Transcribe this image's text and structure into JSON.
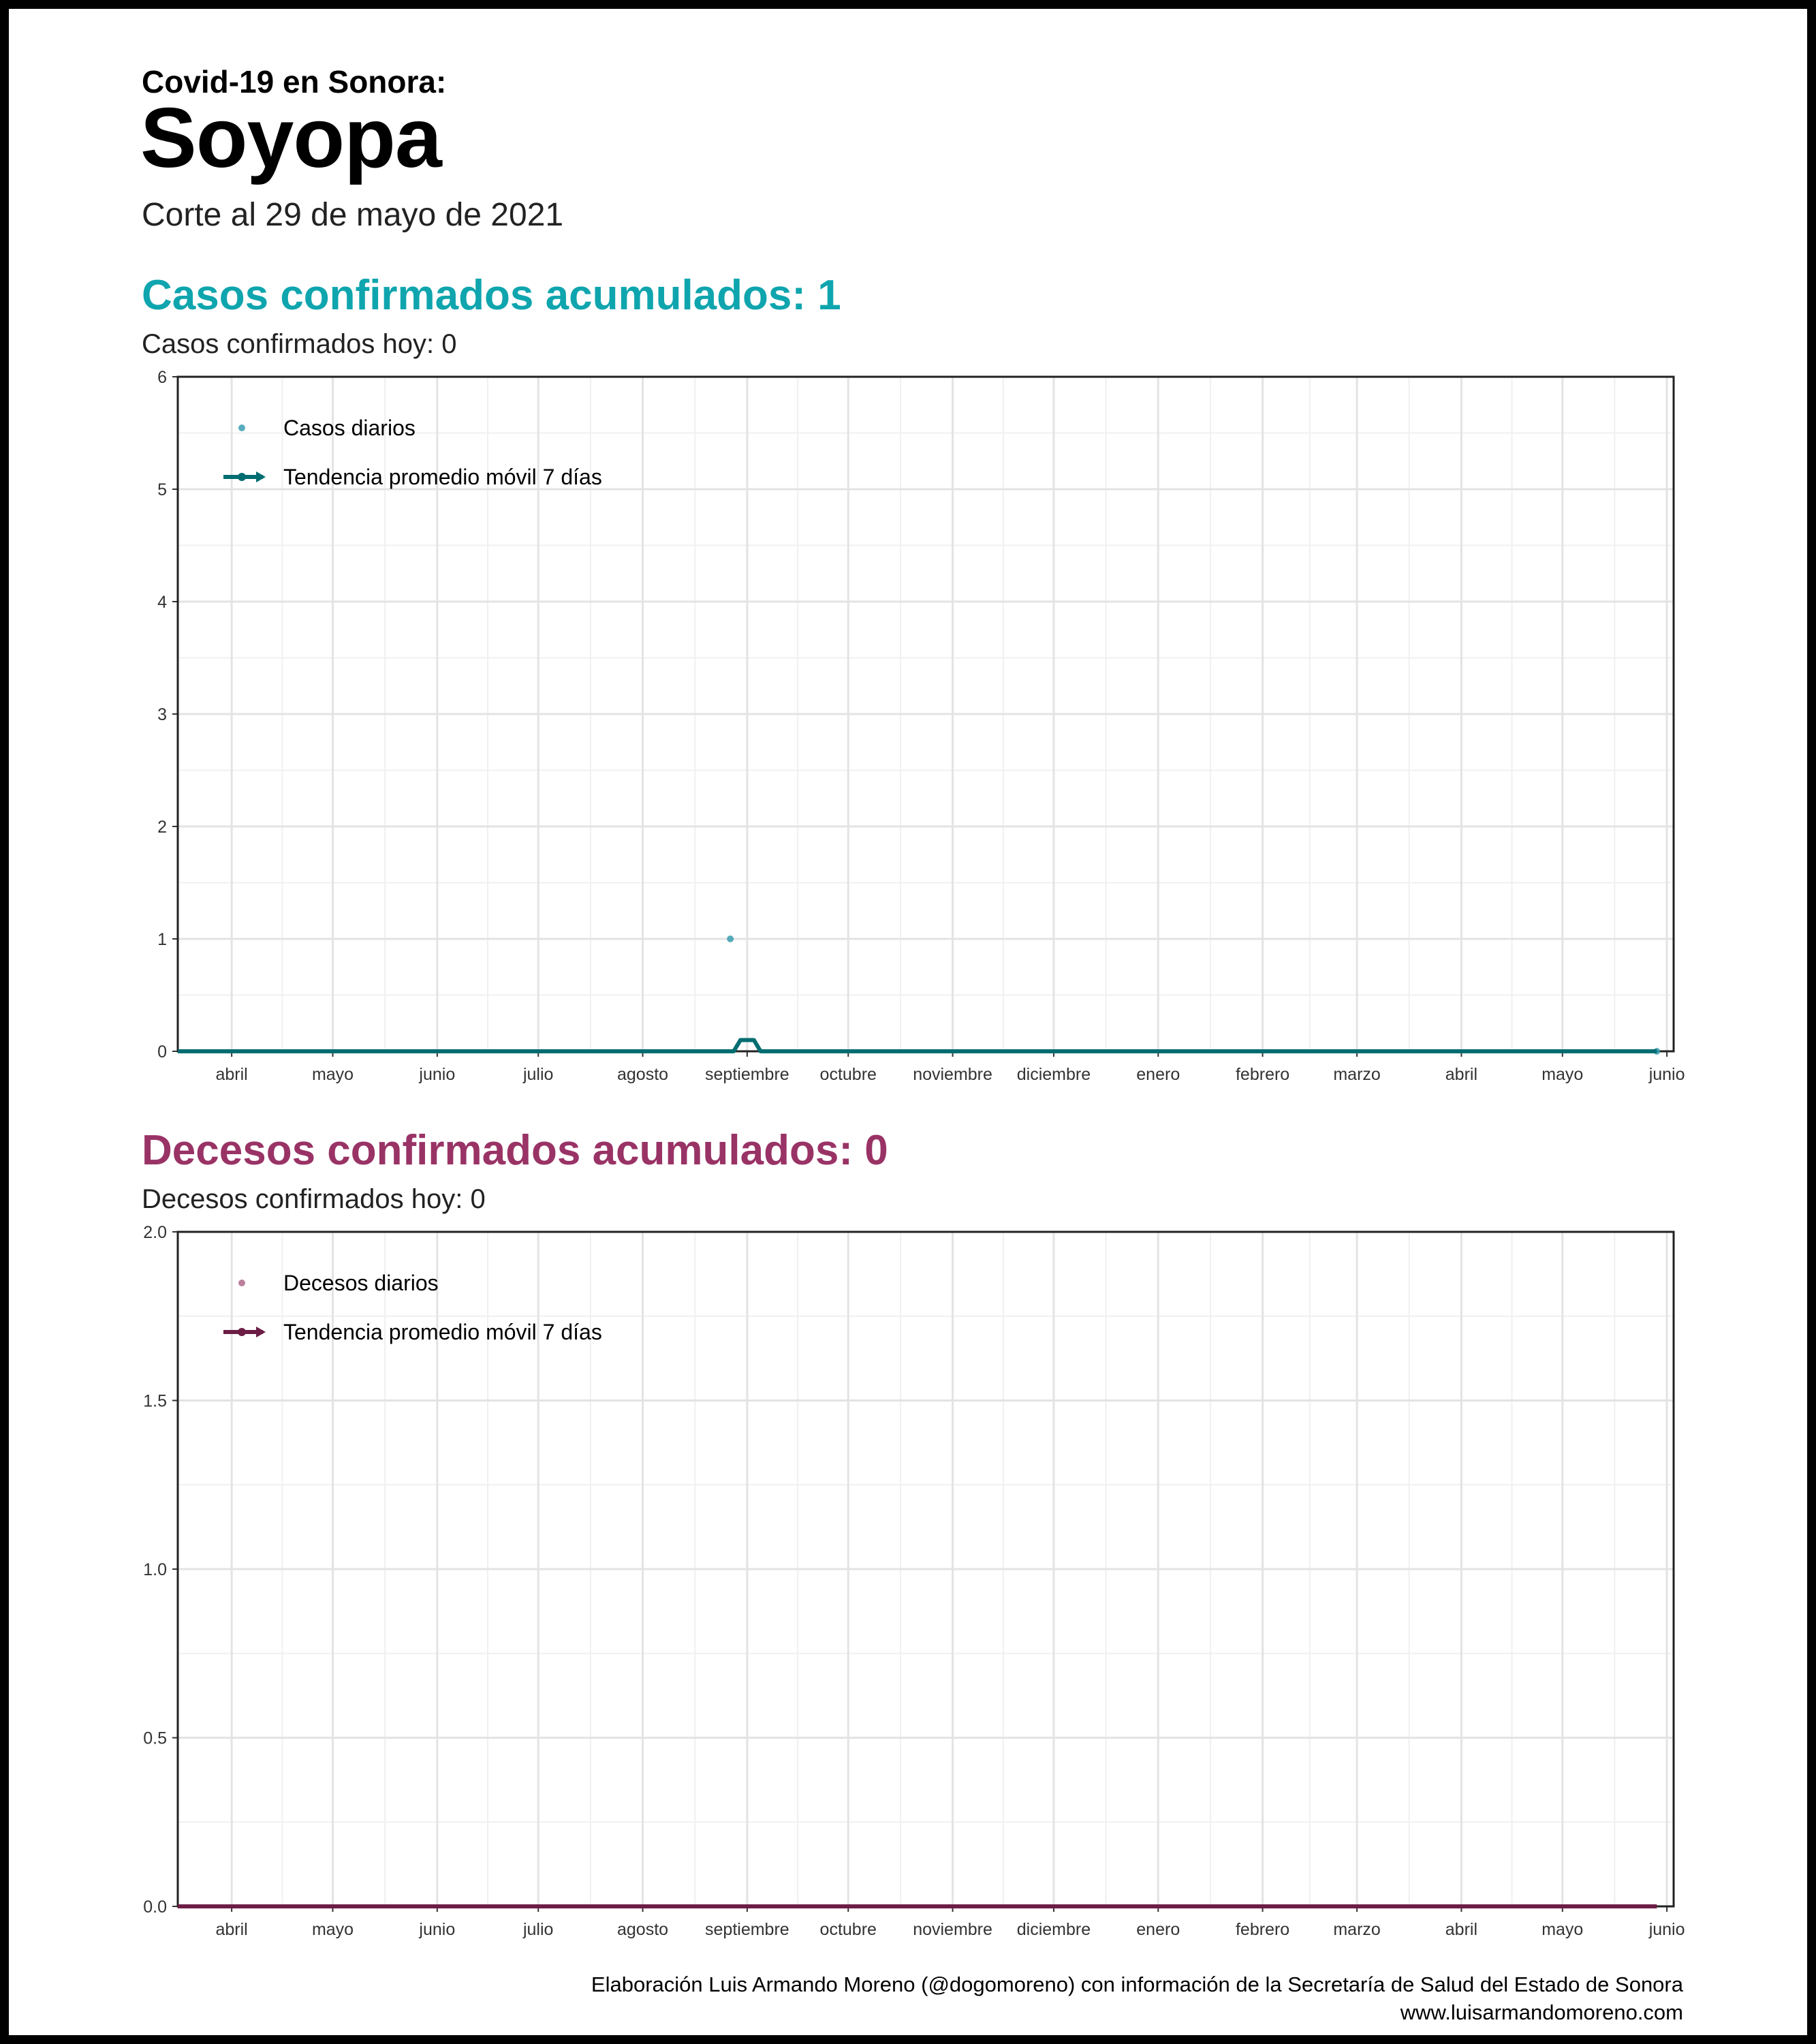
{
  "header": {
    "kicker": "Covid-19 en Sonora:",
    "municipality": "Soyopa",
    "cutoff": "Corte al 29 de mayo de 2021"
  },
  "cases": {
    "title": "Casos confirmados acumulados: 1",
    "today": "Casos confirmados hoy: 0",
    "color": "#0fa5ae",
    "line_color": "#006d71"
  },
  "deaths": {
    "title": "Decesos confirmados acumulados: 0",
    "today": "Decesos confirmados hoy: 0",
    "color": "#993366",
    "line_color": "#6d1e46"
  },
  "footer": {
    "credit": "Elaboración Luis Armando Moreno (@dogomoreno) con información de la Secretaría de Salud del Estado de Sonora",
    "website": "www.luisarmandomoreno.com"
  },
  "chart_data": [
    {
      "type": "line",
      "x_ticks": [
        "abril",
        "mayo",
        "junio",
        "julio",
        "agosto",
        "septiembre",
        "octubre",
        "noviembre",
        "diciembre",
        "enero",
        "febrero",
        "marzo",
        "abril",
        "mayo",
        "junio"
      ],
      "x_tick_dates": [
        "2020-04-01",
        "2020-05-01",
        "2020-06-01",
        "2020-07-01",
        "2020-08-01",
        "2020-09-01",
        "2020-10-01",
        "2020-11-01",
        "2020-12-01",
        "2021-01-01",
        "2021-02-01",
        "2021-03-01",
        "2021-04-01",
        "2021-05-01",
        "2021-06-01"
      ],
      "x_range": [
        "2020-03-16",
        "2021-06-03"
      ],
      "y_ticks": [
        "0",
        "1",
        "2",
        "3",
        "4",
        "5",
        "6"
      ],
      "ylim": [
        0,
        6
      ],
      "grid": true,
      "legend_position": "top-left",
      "series": [
        {
          "name": "Casos diarios",
          "kind": "points",
          "points": [
            {
              "date": "2020-08-27",
              "value": 1
            },
            {
              "date": "2021-05-29",
              "value": 0
            }
          ]
        },
        {
          "name": "Tendencia promedio móvil 7 días",
          "kind": "line",
          "points": [
            {
              "date": "2020-03-16",
              "value": 0
            },
            {
              "date": "2020-08-28",
              "value": 0
            },
            {
              "date": "2020-08-30",
              "value": 0.1
            },
            {
              "date": "2020-09-03",
              "value": 0.1
            },
            {
              "date": "2020-09-05",
              "value": 0
            },
            {
              "date": "2021-05-29",
              "value": 0
            }
          ]
        }
      ]
    },
    {
      "type": "line",
      "x_ticks": [
        "abril",
        "mayo",
        "junio",
        "julio",
        "agosto",
        "septiembre",
        "octubre",
        "noviembre",
        "diciembre",
        "enero",
        "febrero",
        "marzo",
        "abril",
        "mayo",
        "junio"
      ],
      "x_tick_dates": [
        "2020-04-01",
        "2020-05-01",
        "2020-06-01",
        "2020-07-01",
        "2020-08-01",
        "2020-09-01",
        "2020-10-01",
        "2020-11-01",
        "2020-12-01",
        "2021-01-01",
        "2021-02-01",
        "2021-03-01",
        "2021-04-01",
        "2021-05-01",
        "2021-06-01"
      ],
      "x_range": [
        "2020-03-16",
        "2021-06-03"
      ],
      "y_ticks": [
        "0.0",
        "0.5",
        "1.0",
        "1.5",
        "2.0"
      ],
      "ylim": [
        0,
        2
      ],
      "grid": true,
      "legend_position": "top-left",
      "series": [
        {
          "name": "Decesos diarios",
          "kind": "points",
          "points": []
        },
        {
          "name": "Tendencia promedio móvil 7 días",
          "kind": "line",
          "points": [
            {
              "date": "2020-03-16",
              "value": 0
            },
            {
              "date": "2021-05-29",
              "value": 0
            }
          ]
        }
      ]
    }
  ]
}
